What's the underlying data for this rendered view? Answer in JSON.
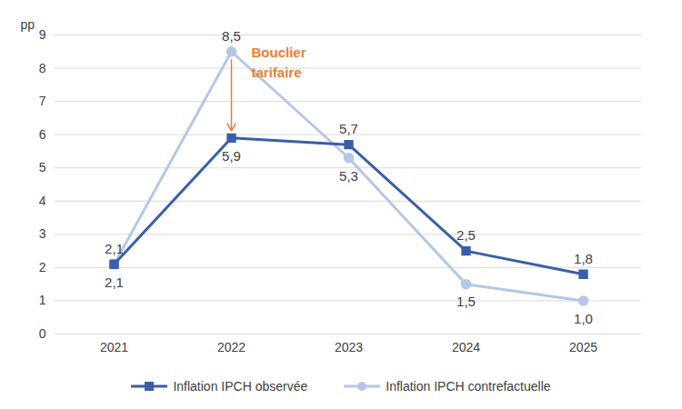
{
  "chart_data": {
    "type": "line",
    "ylabel": "pp",
    "categories": [
      "2021",
      "2022",
      "2023",
      "2024",
      "2025"
    ],
    "series": [
      {
        "name": "Inflation IPCH observée",
        "color": "#3a5ea8",
        "marker": "square",
        "values": [
          2.1,
          5.9,
          5.7,
          2.5,
          1.8
        ],
        "value_labels": [
          "2,1",
          "5,9",
          "5,7",
          "2,5",
          "1,8"
        ]
      },
      {
        "name": "Inflation IPCH contrefactuelle",
        "color": "#b4c7e7",
        "marker": "circle",
        "values": [
          2.1,
          8.5,
          5.3,
          1.5,
          1.0
        ],
        "value_labels": [
          "2,1",
          "8,5",
          "5,3",
          "1,5",
          "1,0"
        ]
      }
    ],
    "annotations": [
      {
        "text": "Bouclier\ntarifaire",
        "x": "2022",
        "color": "#ed7d31"
      }
    ],
    "ylim": [
      0,
      9
    ],
    "yticks": [
      0,
      1,
      2,
      3,
      4,
      5,
      6,
      7,
      8,
      9
    ],
    "grid": true,
    "data_labels": true,
    "legend": "bottom"
  }
}
